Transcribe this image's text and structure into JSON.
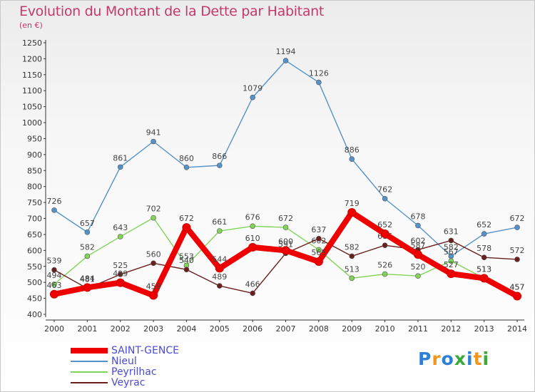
{
  "title": "Evolution du Montant de la Dette par Habitant",
  "subtitle": "(en €)",
  "logo": {
    "letters": [
      "P",
      "r",
      "o",
      "x",
      "i",
      "t",
      "i"
    ],
    "colors": [
      "#2e7fd6",
      "#f0961e",
      "#2e7fd6",
      "#3aa83a",
      "#2e7fd6",
      "#f0961e",
      "#3aa83a"
    ]
  },
  "chart_data": {
    "type": "line",
    "x": [
      "2000",
      "2001",
      "2002",
      "2003",
      "2004",
      "2005",
      "2006",
      "2007",
      "2008",
      "2009",
      "2010",
      "2011",
      "2012",
      "2013",
      "2014"
    ],
    "ylim": [
      400,
      1250
    ],
    "yticks": [
      400,
      450,
      500,
      550,
      600,
      650,
      700,
      750,
      800,
      850,
      900,
      950,
      1000,
      1050,
      1100,
      1150,
      1200,
      1250
    ],
    "grid": false,
    "legend_position": "bottom-left",
    "series": [
      {
        "name": "SAINT-GENCE",
        "color": "#ee0000",
        "values": [
          463,
          484,
          499,
          459,
          672,
          544,
          610,
          600,
          565,
          719,
          652,
          587,
          527,
          513,
          457
        ]
      },
      {
        "name": "Nieul",
        "color": "#5592c8",
        "values": [
          726,
          657,
          861,
          941,
          860,
          866,
          1079,
          1194,
          1126,
          886,
          762,
          678,
          582,
          652,
          672
        ]
      },
      {
        "name": "Peyrilhac",
        "color": "#82d35a",
        "values": [
          494,
          582,
          643,
          702,
          553,
          661,
          676,
          672,
          602,
          513,
          526,
          520,
          567,
          513,
          457
        ]
      },
      {
        "name": "Veyrac",
        "color": "#6a1f1f",
        "values": [
          539,
          481,
          525,
          560,
          540,
          489,
          466,
          591,
          637,
          582,
          616,
          602,
          631,
          578,
          572
        ]
      }
    ]
  }
}
